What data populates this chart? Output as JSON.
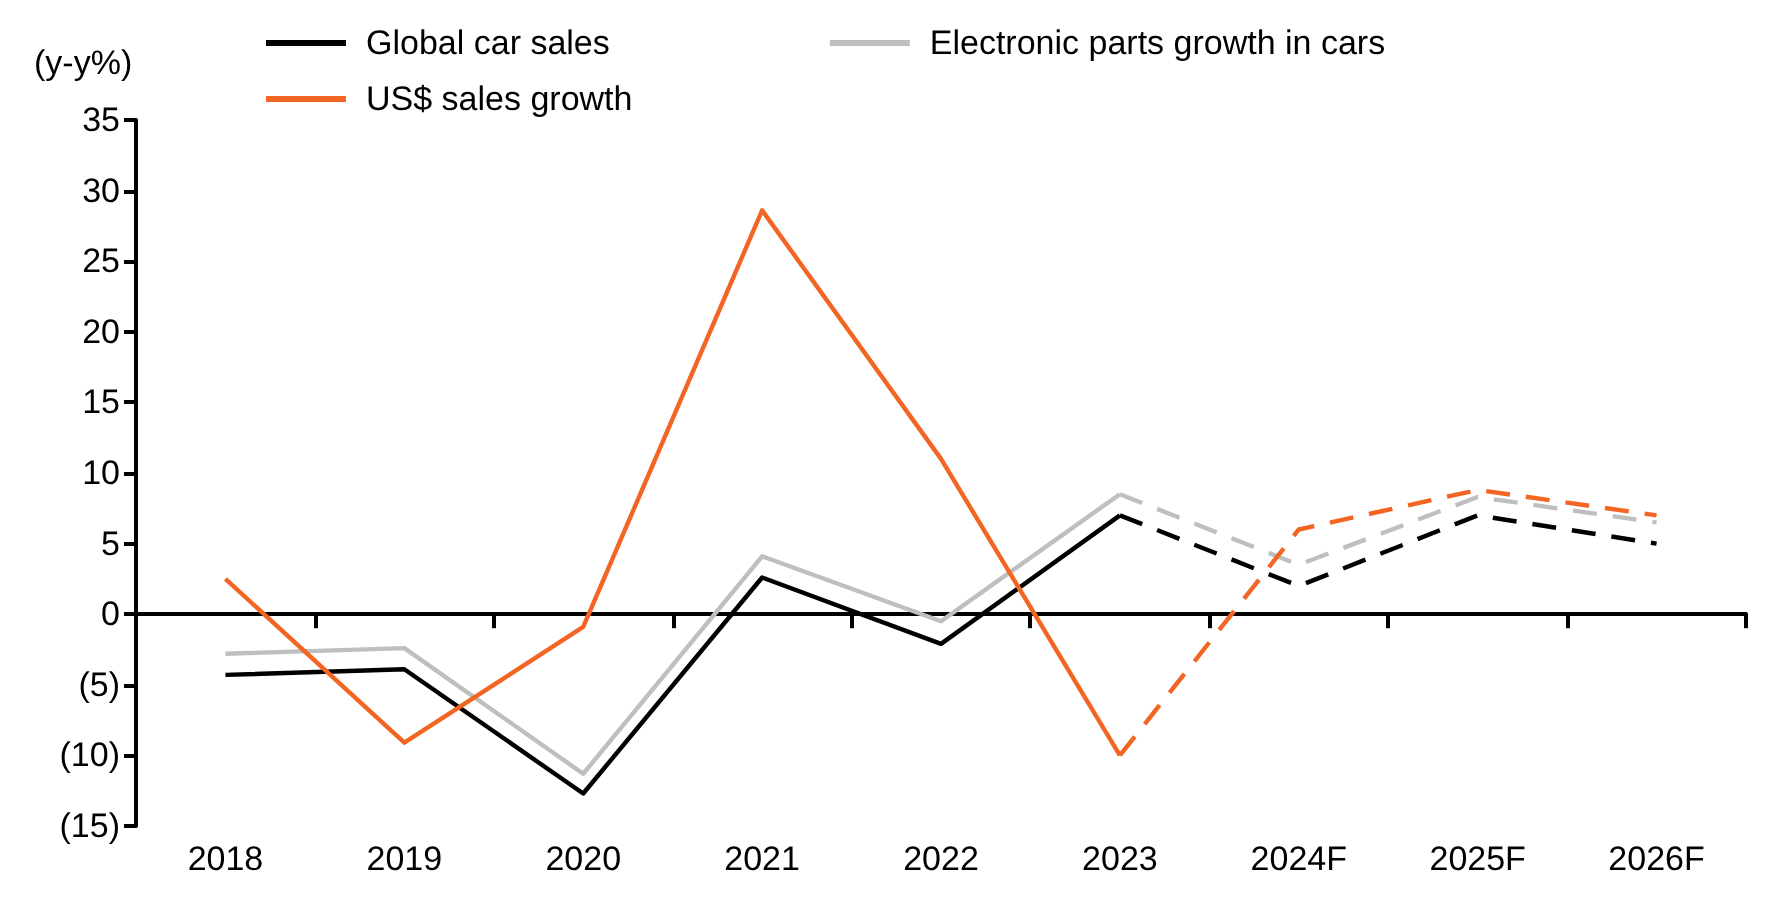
{
  "chart_data": {
    "type": "line",
    "ylabel": "(y-y%)",
    "categories": [
      "2018",
      "2019",
      "2020",
      "2021",
      "2022",
      "2023",
      "2024F",
      "2025F",
      "2026F"
    ],
    "series": [
      {
        "name": "Global car sales",
        "color": "#000000",
        "line_style": "solid",
        "values": [
          -4.3,
          -3.9,
          -12.7,
          2.6,
          -2.1,
          7.0,
          null,
          null,
          null
        ]
      },
      {
        "name": "Electronic parts growth in cars",
        "color": "#bfbfbf",
        "line_style": "solid",
        "values": [
          -2.8,
          -2.4,
          -11.3,
          4.1,
          -0.5,
          8.5,
          null,
          null,
          null
        ]
      },
      {
        "name": "US$ sales growth",
        "color": "#f26522",
        "line_style": "solid",
        "values": [
          2.5,
          -9.1,
          -0.9,
          28.6,
          11.0,
          -10.0,
          null,
          null,
          null
        ]
      },
      {
        "color": "#000000",
        "line_style": "dashed",
        "values": [
          null,
          null,
          null,
          null,
          null,
          7.0,
          2.0,
          7.0,
          5.0
        ]
      },
      {
        "color": "#bfbfbf",
        "line_style": "dashed",
        "values": [
          null,
          null,
          null,
          null,
          null,
          8.5,
          3.5,
          8.3,
          6.5
        ]
      },
      {
        "color": "#f26522",
        "line_style": "dashed",
        "values": [
          null,
          null,
          null,
          null,
          null,
          -10.0,
          6.0,
          8.8,
          7.0
        ]
      }
    ],
    "ylim": [
      -15,
      35
    ],
    "yticks": [
      {
        "value": -15,
        "label": "(15)"
      },
      {
        "value": -10,
        "label": "(10)"
      },
      {
        "value": -5,
        "label": "(5)"
      },
      0,
      5,
      10,
      15,
      20,
      25,
      30,
      35
    ],
    "legend": "top",
    "marker": "none"
  }
}
